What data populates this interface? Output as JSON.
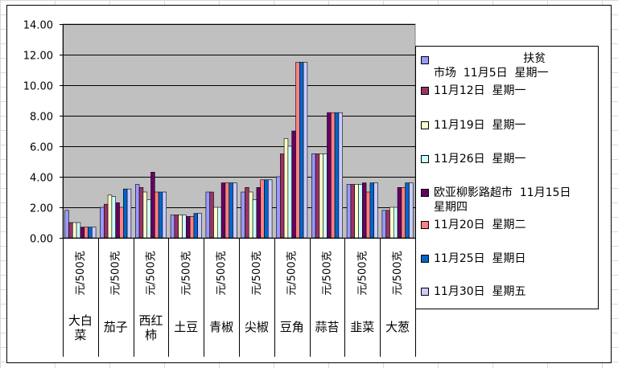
{
  "chart_data": {
    "type": "bar",
    "categories": [
      "大白菜",
      "茄子",
      "西红柿",
      "土豆",
      "青椒",
      "尖椒",
      "豆角",
      "蒜苔",
      "韭菜",
      "大葱"
    ],
    "unit_label": "元/500克",
    "ylim": [
      0,
      14
    ],
    "yticks": [
      "0.00",
      "2.00",
      "4.00",
      "6.00",
      "8.00",
      "10.00",
      "12.00",
      "14.00"
    ],
    "ytick_values": [
      0,
      2,
      4,
      6,
      8,
      10,
      12,
      14
    ],
    "grid": true,
    "legend_position": "right",
    "plot_background": "#c0c0c0",
    "series": [
      {
        "name": "扶贫市场 11月5日 星期一",
        "color": "#9999ff",
        "values": [
          1.8,
          2.0,
          3.5,
          1.5,
          3.0,
          3.0,
          4.0,
          5.5,
          3.5,
          1.8
        ]
      },
      {
        "name": "11月12日 星期一",
        "color": "#993366",
        "values": [
          1.0,
          2.2,
          3.3,
          1.5,
          3.0,
          3.3,
          5.5,
          5.5,
          3.5,
          1.8
        ]
      },
      {
        "name": "11月19日 星期一",
        "color": "#ffffcc",
        "values": [
          1.0,
          2.8,
          3.0,
          1.5,
          2.0,
          3.0,
          6.5,
          5.5,
          3.5,
          2.0
        ]
      },
      {
        "name": "11月26日 星期一",
        "color": "#ccffff",
        "values": [
          1.0,
          2.7,
          2.5,
          1.5,
          2.0,
          2.5,
          6.0,
          5.5,
          3.5,
          2.0
        ]
      },
      {
        "name": "欧亚柳影路超市 11月15日 星期四",
        "color": "#660066",
        "values": [
          0.7,
          2.3,
          4.3,
          1.4,
          3.6,
          3.3,
          7.0,
          8.2,
          3.6,
          3.3
        ]
      },
      {
        "name": "11月20日 星期二",
        "color": "#ff8080",
        "values": [
          0.7,
          2.0,
          3.0,
          1.4,
          3.6,
          3.8,
          11.5,
          8.2,
          3.0,
          3.3
        ]
      },
      {
        "name": "11月25日 星期日",
        "color": "#0066cc",
        "values": [
          0.7,
          3.2,
          3.0,
          1.6,
          3.6,
          3.8,
          11.5,
          8.2,
          3.6,
          3.6
        ]
      },
      {
        "name": "11月30日 星期五",
        "color": "#ccccff",
        "values": [
          0.7,
          3.2,
          3.0,
          1.6,
          3.6,
          3.8,
          11.5,
          8.2,
          3.6,
          3.6
        ]
      }
    ]
  },
  "legend": {
    "items": [
      {
        "text": "                         扶贫\n市场  11月5日  星期一"
      },
      {
        "text": "11月12日  星期一"
      },
      {
        "text": "11月19日  星期一"
      },
      {
        "text": "11月26日  星期一"
      },
      {
        "text": "欧亚柳影路超市  11月15日\n星期四"
      },
      {
        "text": "11月20日  星期二"
      },
      {
        "text": "11月25日  星期日"
      },
      {
        "text": "11月30日  星期五"
      }
    ]
  }
}
